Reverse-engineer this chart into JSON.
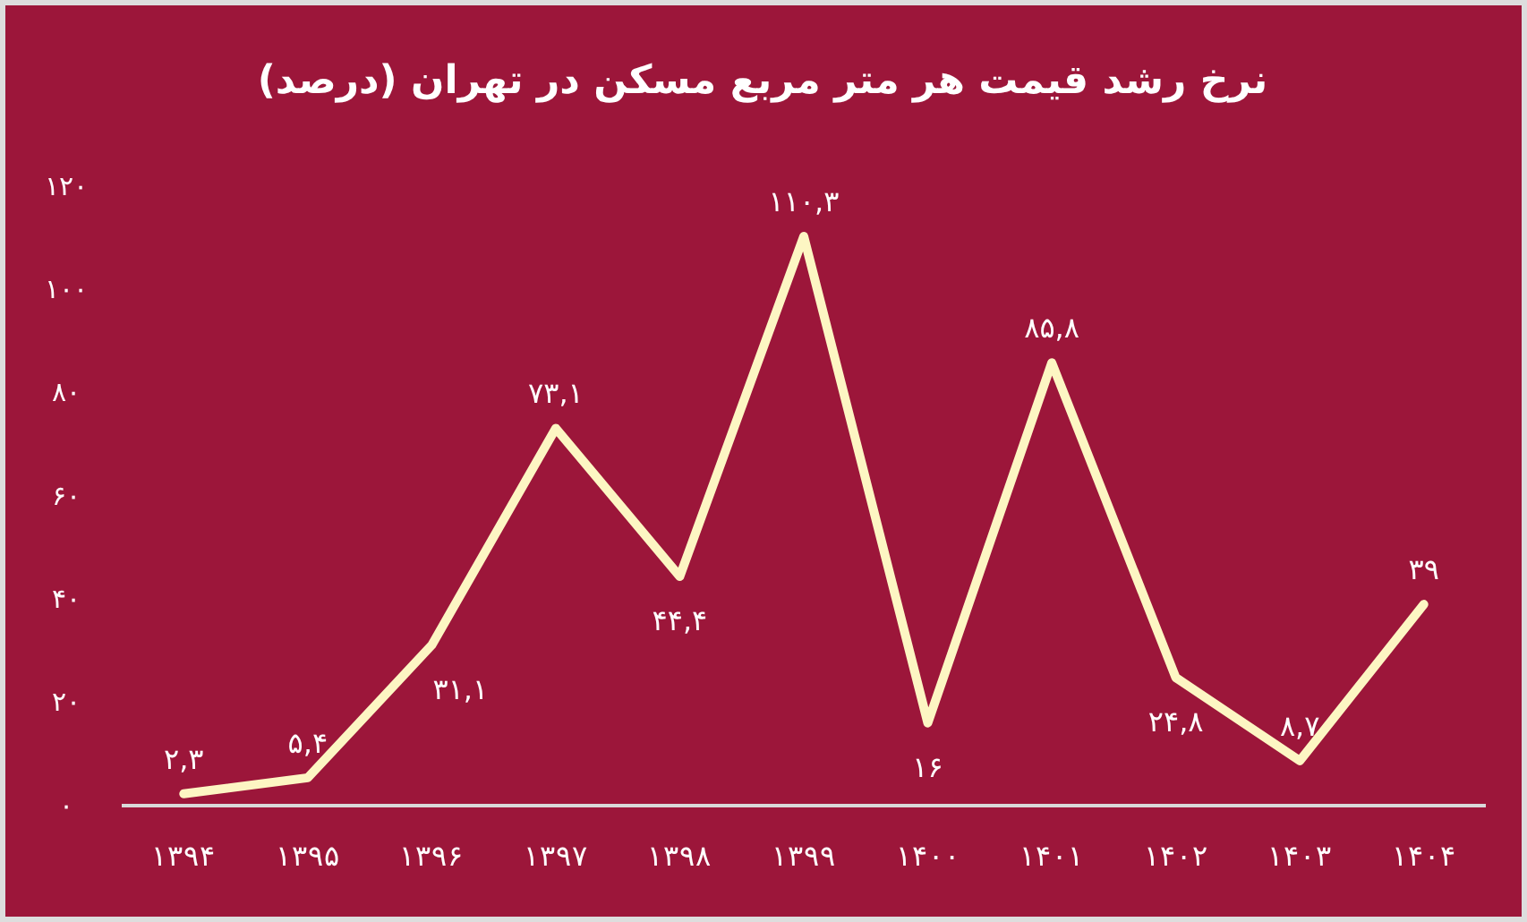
{
  "chart_data": {
    "type": "line",
    "title": "نرخ رشد قیمت هر متر مربع مسکن در تهران (درصد)",
    "categories": [
      "۱۳۹۴",
      "۱۳۹۵",
      "۱۳۹۶",
      "۱۳۹۷",
      "۱۳۹۸",
      "۱۳۹۹",
      "۱۴۰۰",
      "۱۴۰۱",
      "۱۴۰۲",
      "۱۴۰۳",
      "۱۴۰۴"
    ],
    "series": [
      {
        "color": "#fdf6c3",
        "values": [
          2.3,
          5.4,
          31.1,
          73.1,
          44.4,
          110.3,
          16,
          85.8,
          24.8,
          8.7,
          39
        ],
        "value_labels": [
          "۲,۳",
          "۵,۴",
          "۳۱,۱",
          "۷۳,۱",
          "۴۴,۴",
          "۱۱۰,۳",
          "۱۶",
          "۸۵,۸",
          "۲۴,۸",
          "۸,۷",
          "۳۹"
        ]
      }
    ],
    "ylim": [
      0,
      120
    ],
    "yticks": [
      {
        "value": 0,
        "label": "۰"
      },
      {
        "value": 20,
        "label": "۲۰"
      },
      {
        "value": 40,
        "label": "۴۰"
      },
      {
        "value": 60,
        "label": "۶۰"
      },
      {
        "value": 80,
        "label": "۸۰"
      },
      {
        "value": 100,
        "label": "۱۰۰"
      },
      {
        "value": 120,
        "label": "۱۲۰"
      }
    ],
    "grid": false,
    "marker": "none",
    "line_style": "solid"
  }
}
